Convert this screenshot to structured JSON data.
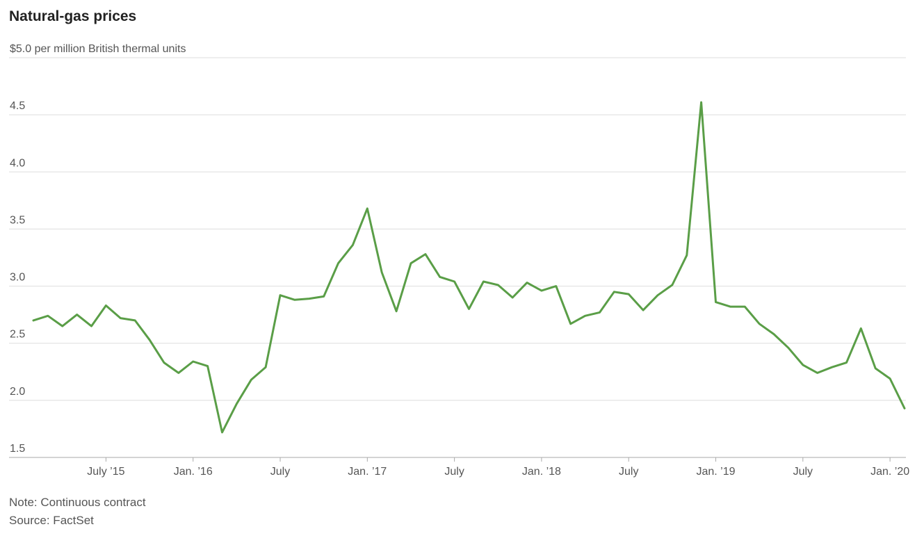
{
  "title": "Natural-gas prices",
  "note": "Note: Continuous contract",
  "source": "Source: FactSet",
  "colors": {
    "line": "#5a9e47",
    "grid": "#dddddd",
    "axis": "#aaaaaa",
    "text": "#555555"
  },
  "chart_data": {
    "type": "line",
    "title": "Natural-gas prices",
    "ylabel": "$5.0 per million British thermal units",
    "ylim": [
      1.5,
      5.0
    ],
    "xlim": [
      "2015-02",
      "2020-02"
    ],
    "y_ticks": [
      {
        "value": 5.0,
        "label": "$5.0 per million British thermal units"
      },
      {
        "value": 4.5,
        "label": "4.5"
      },
      {
        "value": 4.0,
        "label": "4.0"
      },
      {
        "value": 3.5,
        "label": "3.5"
      },
      {
        "value": 3.0,
        "label": "3.0"
      },
      {
        "value": 2.5,
        "label": "2.5"
      },
      {
        "value": 2.0,
        "label": "2.0"
      },
      {
        "value": 1.5,
        "label": "1.5"
      }
    ],
    "x_ticks": [
      {
        "date": "2015-07",
        "label": "July ’15"
      },
      {
        "date": "2016-01",
        "label": "Jan. ’16"
      },
      {
        "date": "2016-07",
        "label": "July"
      },
      {
        "date": "2017-01",
        "label": "Jan. ’17"
      },
      {
        "date": "2017-07",
        "label": "July"
      },
      {
        "date": "2018-01",
        "label": "Jan. ’18"
      },
      {
        "date": "2018-07",
        "label": "July"
      },
      {
        "date": "2019-01",
        "label": "Jan. ’19"
      },
      {
        "date": "2019-07",
        "label": "July"
      },
      {
        "date": "2020-01",
        "label": "Jan. ’20"
      }
    ],
    "grid": true,
    "series": [
      {
        "x": [
          "2015-02",
          "2015-03",
          "2015-04",
          "2015-05",
          "2015-06",
          "2015-07",
          "2015-08",
          "2015-09",
          "2015-10",
          "2015-11",
          "2015-12",
          "2016-01",
          "2016-02",
          "2016-03",
          "2016-04",
          "2016-05",
          "2016-06",
          "2016-07",
          "2016-08",
          "2016-09",
          "2016-10",
          "2016-11",
          "2016-12",
          "2017-01",
          "2017-02",
          "2017-03",
          "2017-04",
          "2017-05",
          "2017-06",
          "2017-07",
          "2017-08",
          "2017-09",
          "2017-10",
          "2017-11",
          "2017-12",
          "2018-01",
          "2018-02",
          "2018-03",
          "2018-04",
          "2018-05",
          "2018-06",
          "2018-07",
          "2018-08",
          "2018-09",
          "2018-10",
          "2018-11",
          "2018-12",
          "2019-01",
          "2019-02",
          "2019-03",
          "2019-04",
          "2019-05",
          "2019-06",
          "2019-07",
          "2019-08",
          "2019-09",
          "2019-10",
          "2019-11",
          "2019-12",
          "2020-01",
          "2020-02"
        ],
        "values": [
          2.7,
          2.74,
          2.65,
          2.75,
          2.65,
          2.83,
          2.72,
          2.7,
          2.53,
          2.33,
          2.24,
          2.34,
          2.3,
          1.72,
          1.97,
          2.18,
          2.29,
          2.92,
          2.88,
          2.89,
          2.91,
          3.2,
          3.36,
          3.68,
          3.12,
          2.78,
          3.2,
          3.28,
          3.08,
          3.04,
          2.8,
          3.04,
          3.01,
          2.9,
          3.03,
          2.96,
          3.0,
          2.67,
          2.74,
          2.77,
          2.95,
          2.93,
          2.79,
          2.92,
          3.01,
          3.27,
          4.61,
          2.86,
          2.82,
          2.82,
          2.67,
          2.58,
          2.46,
          2.31,
          2.24,
          2.29,
          2.33,
          2.63,
          2.28,
          2.19,
          1.93
        ]
      }
    ]
  }
}
